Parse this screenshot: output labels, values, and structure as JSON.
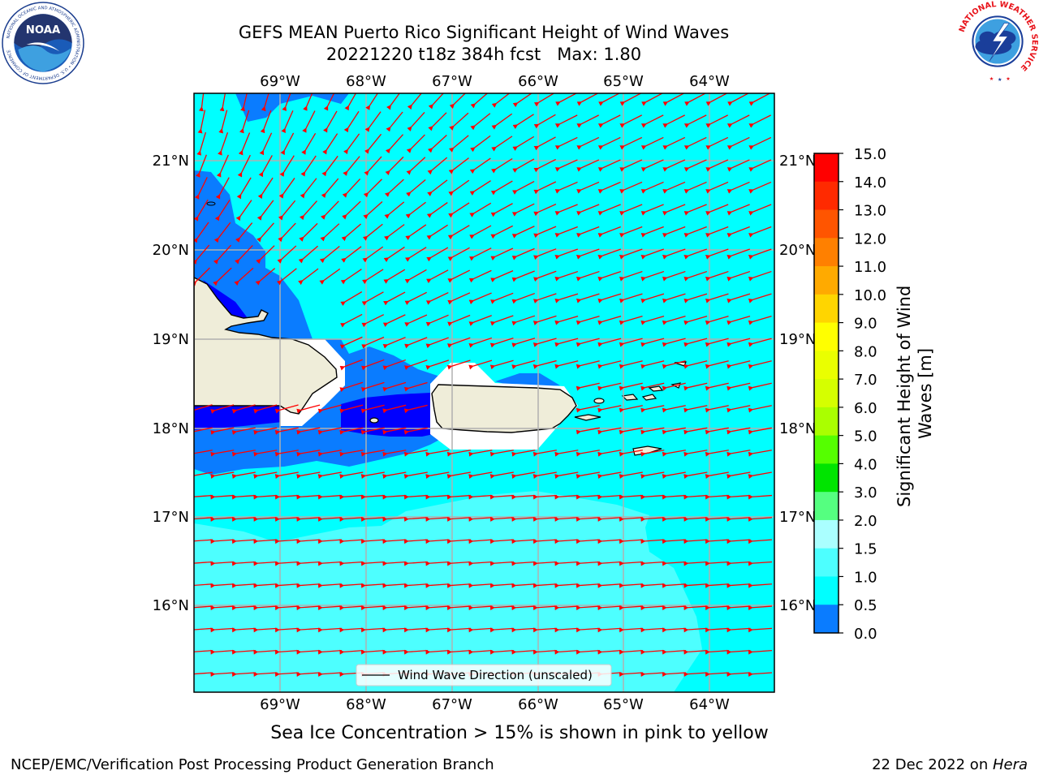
{
  "header": {
    "title_line1": "GEFS MEAN Puerto Rico Significant Height of Wind Waves",
    "title_line2": "20221220 t18z 384h fcst   Max: 1.80"
  },
  "logos": {
    "noaa": {
      "icon": "noaa-logo",
      "text": "NOAA",
      "ring_text": "NATIONAL OCEANIC AND ATMOSPHERIC ADMINISTRATION • U.S. DEPARTMENT OF COMMERCE"
    },
    "nws": {
      "icon": "nws-logo",
      "ring_text": "NATIONAL WEATHER SERVICE"
    }
  },
  "map": {
    "lon_labels": [
      "69°W",
      "68°W",
      "67°W",
      "66°W",
      "65°W",
      "64°W"
    ],
    "lat_labels": [
      "21°N",
      "20°N",
      "19°N",
      "18°N",
      "17°N",
      "16°N"
    ],
    "legend_label": "Wind Wave Direction (unscaled)",
    "colors": {
      "land": "#efedd9",
      "sea_dark_blue": "#0000ff",
      "sea_blue": "#0a7cff",
      "sea_cyan": "#00ffff",
      "sea_light_cyan": "#4dffff",
      "arrow": "#ff0000"
    }
  },
  "colorbar": {
    "label": "Significant Height of Wind Waves [m]",
    "ticks": [
      "15.0",
      "14.0",
      "13.0",
      "12.0",
      "11.0",
      "10.0",
      "9.0",
      "8.0",
      "7.0",
      "6.0",
      "5.0",
      "4.0",
      "3.0",
      "2.0",
      "1.5",
      "1.0",
      "0.5",
      "0.0"
    ],
    "colors": [
      "#ff0000",
      "#ff2a00",
      "#ff5500",
      "#ff8000",
      "#ffaa00",
      "#ffd500",
      "#ffff00",
      "#eaff00",
      "#d5ff00",
      "#aaff00",
      "#55ff00",
      "#00e400",
      "#55ff80",
      "#aaffff",
      "#4dffff",
      "#00ffff",
      "#0a7cff",
      "#0000ff"
    ]
  },
  "footer": {
    "note": "Sea Ice Concentration > 15% is shown in pink to yellow",
    "credit_left": "NCEP/EMC/Verification Post Processing Product Generation Branch",
    "credit_right_prefix": "22 Dec 2022 on ",
    "credit_right_host": "Hera"
  }
}
